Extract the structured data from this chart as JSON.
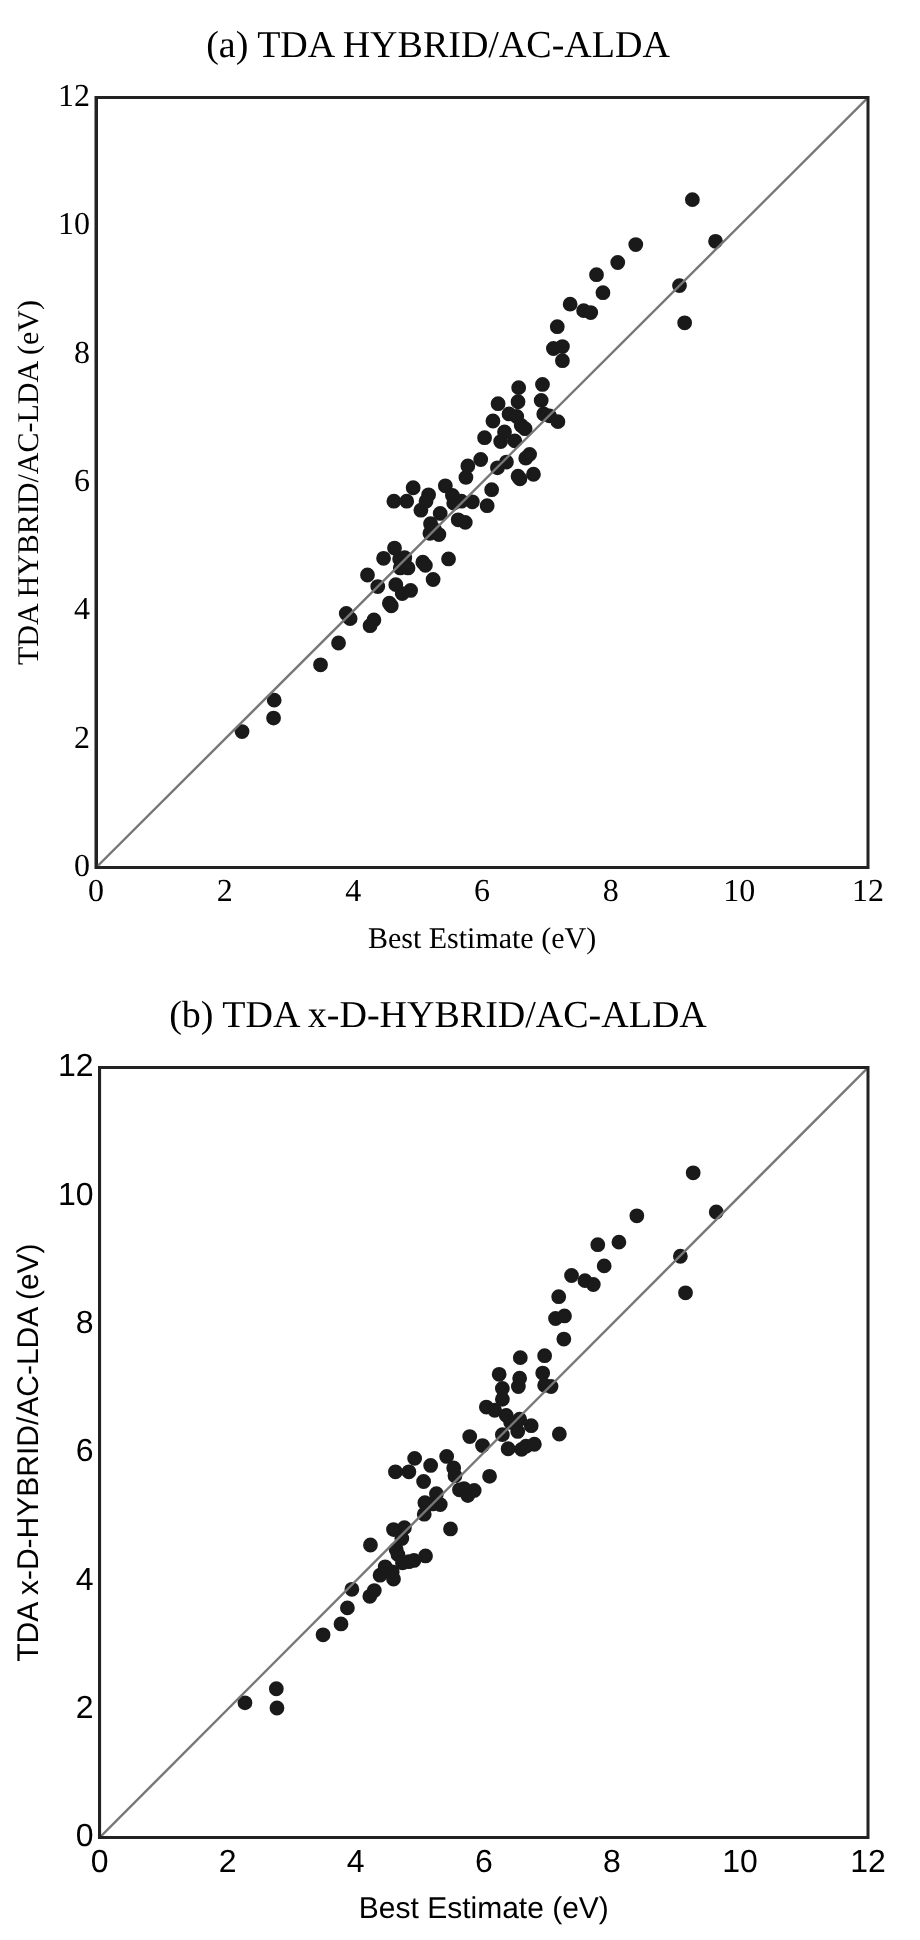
{
  "chart_data": [
    {
      "type": "scatter",
      "title": "(a) TDA HYBRID/AC-ALDA",
      "xlabel": "Best Estimate (eV)",
      "ylabel": "TDA HYBRID/AC-LDA (eV)",
      "xlim": [
        0,
        12
      ],
      "ylim": [
        0,
        12
      ],
      "xticks": [
        0,
        2,
        4,
        6,
        8,
        10,
        12
      ],
      "yticks": [
        0,
        2,
        4,
        6,
        8,
        10,
        12
      ],
      "grid": false,
      "legend": false,
      "series": [
        {
          "marker": "circle",
          "color": "#1a1a1a",
          "x": [
            2.27,
            2.77,
            2.76,
            3.49,
            3.77,
            3.89,
            3.95,
            4.26,
            4.32,
            4.22,
            4.38,
            4.56,
            4.59,
            4.47,
            4.63,
            4.64,
            4.66,
            4.72,
            4.8,
            4.73,
            4.85,
            4.76,
            4.89,
            4.83,
            4.93,
            5.05,
            5.08,
            5.12,
            5.17,
            5.24,
            5.13,
            5.2,
            5.19,
            5.26,
            5.33,
            5.35,
            5.43,
            5.48,
            5.54,
            5.56,
            5.63,
            5.74,
            5.68,
            5.75,
            5.78,
            5.85,
            5.98,
            6.04,
            6.08,
            6.15,
            6.17,
            6.25,
            6.24,
            6.29,
            6.35,
            6.38,
            6.42,
            6.51,
            6.54,
            6.61,
            6.67,
            6.56,
            6.57,
            6.56,
            6.59,
            6.68,
            6.74,
            6.8,
            6.92,
            6.94,
            6.96,
            7.05,
            7.11,
            7.25,
            7.17,
            7.18,
            7.25,
            7.37,
            7.58,
            7.69,
            7.78,
            7.88,
            8.11,
            8.39,
            9.07,
            9.15,
            9.27,
            9.63
          ],
          "values": [
            2.12,
            2.61,
            2.33,
            3.16,
            3.5,
            3.96,
            3.88,
            3.77,
            3.86,
            4.56,
            4.38,
            4.12,
            4.08,
            4.82,
            5.71,
            4.98,
            4.41,
            4.81,
            4.83,
            4.67,
            4.67,
            4.27,
            4.32,
            5.71,
            5.92,
            5.57,
            4.76,
            4.71,
            5.81,
            4.49,
            5.71,
            5.36,
            5.21,
            5.27,
            5.19,
            5.52,
            5.95,
            4.81,
            5.8,
            5.68,
            5.42,
            5.38,
            5.71,
            6.08,
            6.26,
            5.7,
            6.36,
            6.7,
            5.64,
            5.89,
            6.96,
            7.23,
            6.23,
            6.64,
            6.79,
            6.32,
            7.07,
            6.65,
            7.03,
            6.89,
            6.84,
            7.26,
            7.48,
            6.1,
            6.06,
            6.38,
            6.44,
            6.13,
            7.28,
            7.53,
            7.07,
            7.04,
            8.09,
            8.12,
            8.43,
            6.95,
            7.9,
            8.78,
            8.68,
            8.65,
            9.24,
            8.96,
            9.43,
            9.71,
            9.07,
            8.49,
            10.41,
            9.76
          ]
        },
        {
          "type": "line",
          "color": "#777777",
          "x": [
            0,
            12
          ],
          "values": [
            0,
            12
          ]
        }
      ]
    },
    {
      "type": "scatter",
      "title": "(b) TDA x-D-HYBRID/AC-ALDA",
      "xlabel": "Best Estimate (eV)",
      "ylabel": "TDA x-D-HYBRID/AC-LDA (eV)",
      "xlim": [
        0,
        12
      ],
      "ylim": [
        0,
        12
      ],
      "xticks": [
        0,
        2,
        4,
        6,
        8,
        10,
        12
      ],
      "yticks": [
        0,
        2,
        4,
        6,
        8,
        10,
        12
      ],
      "grid": false,
      "legend": false,
      "series": [
        {
          "marker": "circle",
          "color": "#1a1a1a",
          "x": [
            2.27,
            2.76,
            2.77,
            3.49,
            3.77,
            3.87,
            3.94,
            4.22,
            4.29,
            4.23,
            4.38,
            4.46,
            4.57,
            4.59,
            4.59,
            4.62,
            4.63,
            4.66,
            4.72,
            4.76,
            4.73,
            4.83,
            4.91,
            4.83,
            4.92,
            5.06,
            5.07,
            5.08,
            5.09,
            5.17,
            5.2,
            5.26,
            5.32,
            5.42,
            5.48,
            5.53,
            5.55,
            5.62,
            5.69,
            5.75,
            5.85,
            5.78,
            5.98,
            6.04,
            6.17,
            6.09,
            6.24,
            6.29,
            6.29,
            6.29,
            6.35,
            6.38,
            6.42,
            6.53,
            6.54,
            6.56,
            6.57,
            6.56,
            6.59,
            6.66,
            6.79,
            6.74,
            6.92,
            6.95,
            6.95,
            7.05,
            7.12,
            7.26,
            7.17,
            7.18,
            7.25,
            7.37,
            7.58,
            7.71,
            7.78,
            7.88,
            8.11,
            8.39,
            9.07,
            9.15,
            9.27,
            9.63
          ],
          "values": [
            2.1,
            2.32,
            2.02,
            3.16,
            3.33,
            3.58,
            3.87,
            3.76,
            3.85,
            4.56,
            4.09,
            4.22,
            4.14,
            4.03,
            4.8,
            5.7,
            4.49,
            4.41,
            4.66,
            4.83,
            4.28,
            4.3,
            4.32,
            5.7,
            5.91,
            5.55,
            5.04,
            5.22,
            4.39,
            5.8,
            5.2,
            5.36,
            5.19,
            5.94,
            4.81,
            5.76,
            5.64,
            5.42,
            5.44,
            5.33,
            5.41,
            6.25,
            6.11,
            6.71,
            6.66,
            5.63,
            7.22,
            7.0,
            6.83,
            6.28,
            6.58,
            6.06,
            6.47,
            6.33,
            7.03,
            7.16,
            7.48,
            6.52,
            6.05,
            6.1,
            6.13,
            6.42,
            7.24,
            7.51,
            7.05,
            7.03,
            8.09,
            8.13,
            8.43,
            6.29,
            7.77,
            8.76,
            8.68,
            8.62,
            9.24,
            8.91,
            9.28,
            9.69,
            9.06,
            8.49,
            10.36,
            9.75
          ]
        },
        {
          "type": "line",
          "color": "#777777",
          "x": [
            0,
            12
          ],
          "values": [
            0,
            12
          ]
        }
      ]
    }
  ]
}
